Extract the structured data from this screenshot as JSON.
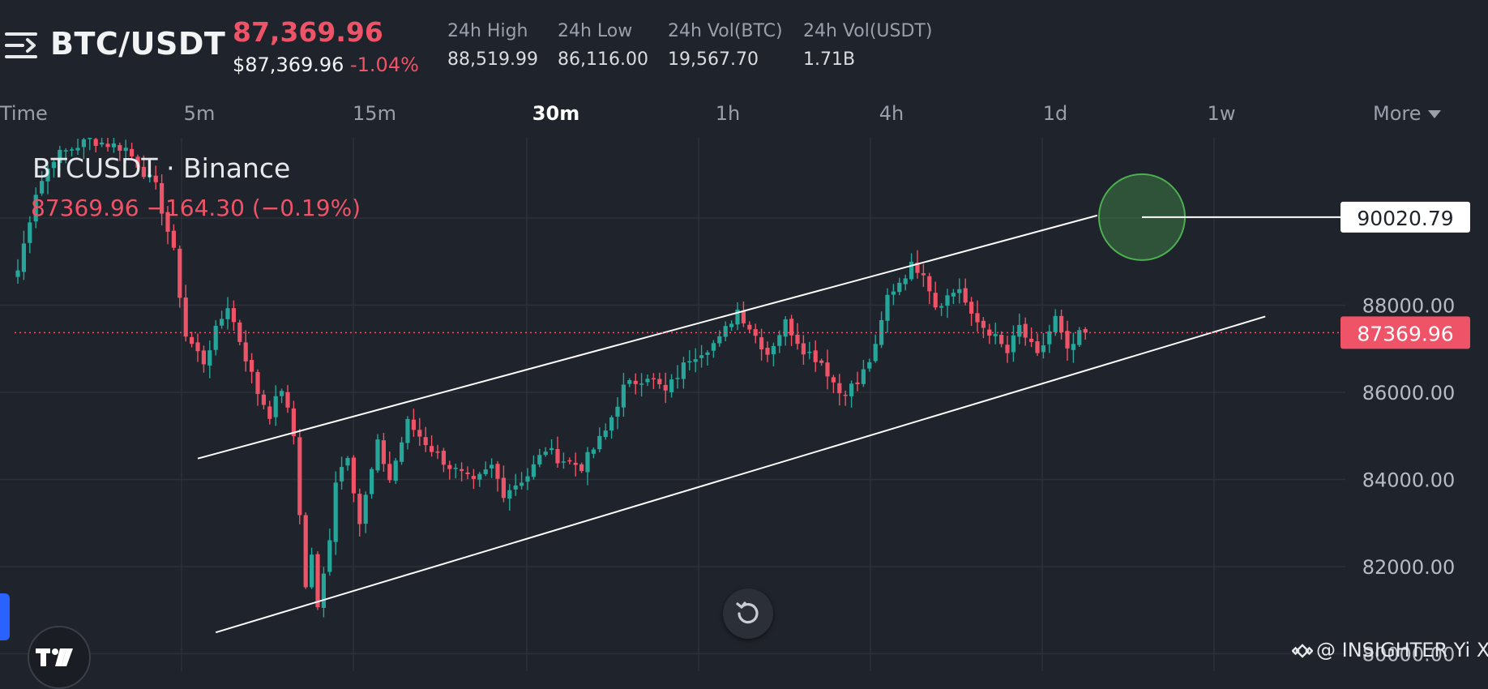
{
  "header": {
    "pair": "BTC/USDT",
    "last_price": "87,369.96",
    "usd_price": "$87,369.96",
    "change_pct": "-1.04%",
    "stats": [
      {
        "label": "24h High",
        "value": "88,519.99"
      },
      {
        "label": "24h Low",
        "value": "86,116.00"
      },
      {
        "label": "24h Vol(BTC)",
        "value": "19,567.70"
      },
      {
        "label": "24h Vol(USDT)",
        "value": "1.71B"
      }
    ]
  },
  "intervals": {
    "time_label": "Time",
    "items": [
      "5m",
      "15m",
      "30m",
      "1h",
      "4h",
      "1d",
      "1w"
    ],
    "active": "30m",
    "more_label": "More"
  },
  "legend": {
    "symbol": "BTCUSDT · Binance",
    "quote": "87369.96  −164.30 (−0.19%)"
  },
  "watermark": "@ INSIGHTER Yi Xi",
  "colors": {
    "background": "#1f232b",
    "up": "#26a69a",
    "down": "#ef5367",
    "grid": "#2c313b",
    "price_label_bg": "#ef5367",
    "target_circle": "#4caf50"
  },
  "icons": {
    "menu": "menu-arrow-icon",
    "reset": "reset-icon",
    "logo": "tradingview-logo-icon",
    "exchange": "binance-logo-icon"
  },
  "chart_data": {
    "type": "candlestick",
    "symbol": "BTCUSDT",
    "exchange": "Binance",
    "interval": "30m",
    "y_ticks": [
      80000,
      82000,
      84000,
      86000,
      88000
    ],
    "y_tick_labels": [
      "80000.00",
      "82000.00",
      "84000.00",
      "86000.00",
      "88000.00"
    ],
    "ylim": [
      79800,
      92200
    ],
    "current_price": 87369.96,
    "current_price_label": "87369.96",
    "target_price": 90020.79,
    "target_price_label": "90020.79",
    "grid": true,
    "channel": {
      "upper": [
        {
          "bar": 30,
          "price": 84480
        },
        {
          "bar": 180,
          "price": 90060
        }
      ],
      "lower": [
        {
          "bar": 33,
          "price": 80490
        },
        {
          "bar": 208,
          "price": 87740
        }
      ]
    },
    "bars_count": 180,
    "anchors": [
      [
        0,
        88800
      ],
      [
        3,
        90600
      ],
      [
        6,
        91400
      ],
      [
        12,
        91800
      ],
      [
        18,
        91600
      ],
      [
        23,
        90700
      ],
      [
        26,
        89200
      ],
      [
        28,
        87300
      ],
      [
        31,
        86700
      ],
      [
        33,
        87400
      ],
      [
        35,
        88000
      ],
      [
        37,
        87200
      ],
      [
        40,
        86000
      ],
      [
        42,
        85500
      ],
      [
        44,
        86100
      ],
      [
        46,
        85000
      ],
      [
        48,
        81500
      ],
      [
        49,
        82300
      ],
      [
        50,
        81000
      ],
      [
        51,
        81800
      ],
      [
        52,
        82700
      ],
      [
        53,
        84000
      ],
      [
        55,
        84600
      ],
      [
        57,
        83000
      ],
      [
        60,
        84800
      ],
      [
        62,
        84000
      ],
      [
        65,
        85300
      ],
      [
        69,
        84700
      ],
      [
        72,
        84300
      ],
      [
        76,
        83900
      ],
      [
        79,
        84300
      ],
      [
        81,
        83700
      ],
      [
        85,
        84100
      ],
      [
        88,
        84700
      ],
      [
        90,
        84500
      ],
      [
        94,
        84300
      ],
      [
        98,
        85100
      ],
      [
        101,
        86100
      ],
      [
        105,
        86400
      ],
      [
        108,
        86000
      ],
      [
        112,
        86800
      ],
      [
        117,
        87200
      ],
      [
        120,
        87900
      ],
      [
        122,
        87500
      ],
      [
        125,
        86900
      ],
      [
        128,
        87600
      ],
      [
        131,
        87000
      ],
      [
        134,
        86700
      ],
      [
        137,
        86000
      ],
      [
        140,
        86200
      ],
      [
        143,
        87000
      ],
      [
        145,
        88200
      ],
      [
        149,
        88900
      ],
      [
        151,
        88800
      ],
      [
        153,
        88000
      ],
      [
        157,
        88400
      ],
      [
        159,
        87700
      ],
      [
        162,
        87400
      ],
      [
        165,
        86900
      ],
      [
        167,
        87500
      ],
      [
        170,
        86800
      ],
      [
        173,
        87700
      ],
      [
        175,
        86900
      ],
      [
        177,
        87300
      ],
      [
        179,
        87370
      ]
    ]
  }
}
